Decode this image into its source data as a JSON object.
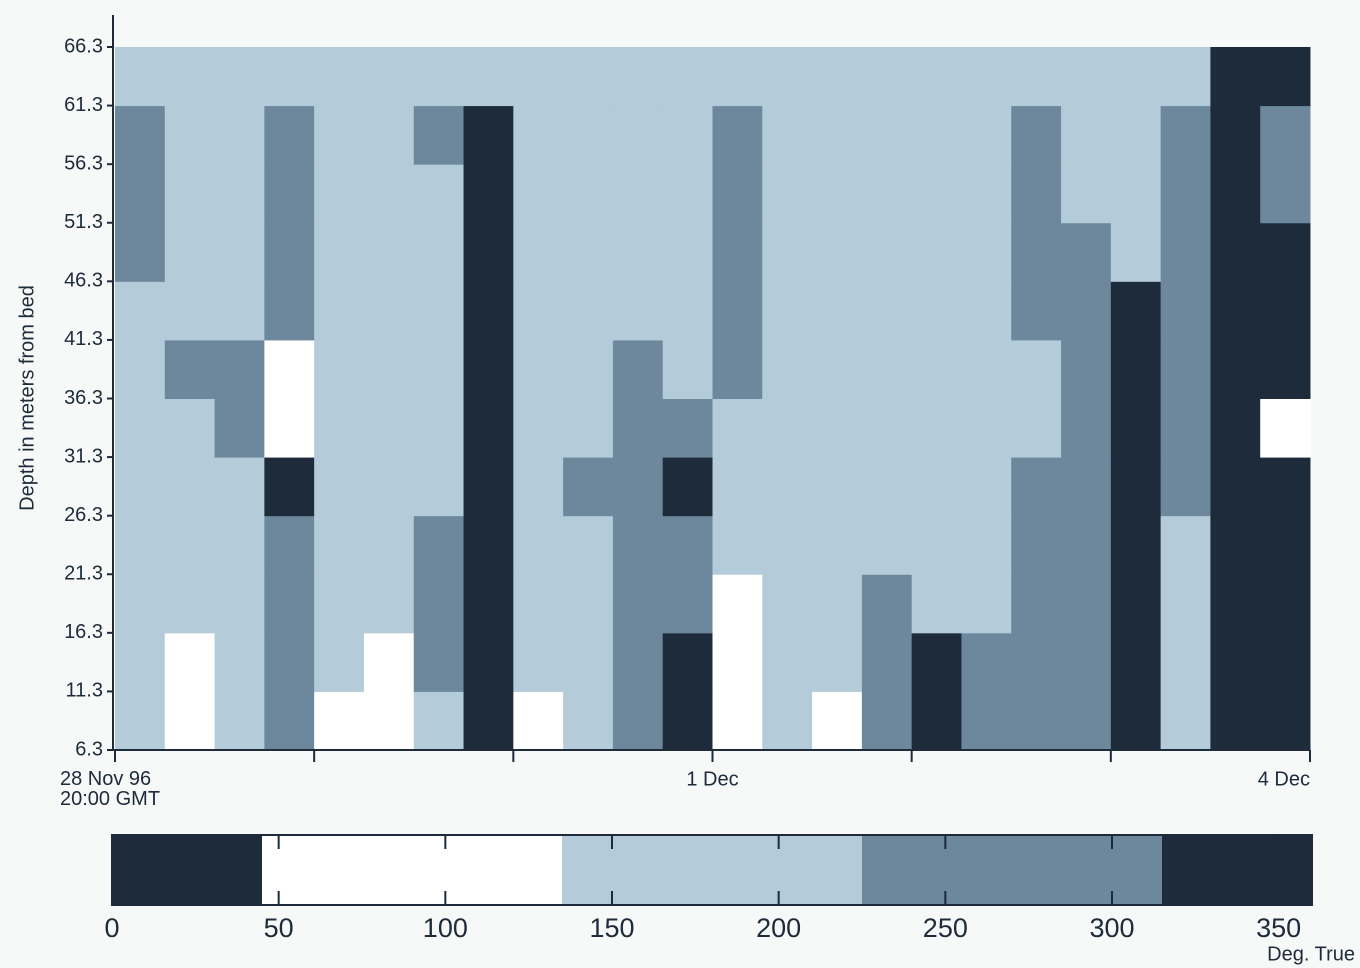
{
  "chart_data": {
    "type": "heatmap",
    "y_label": "Depth in meters from bed",
    "xlim": [
      0,
      6
    ],
    "xticks": [
      {
        "value": 0,
        "label": "28 Nov 96\n20:00 GMT"
      },
      {
        "value": 3,
        "label": "1 Dec"
      },
      {
        "value": 6,
        "label": "4 Dec"
      }
    ],
    "minor_xticks": [
      1,
      2,
      4,
      5
    ],
    "ylim": [
      6.3,
      66.3
    ],
    "yticks": [
      6.3,
      11.3,
      16.3,
      21.3,
      26.3,
      31.3,
      36.3,
      41.3,
      46.3,
      51.3,
      56.3,
      61.3,
      66.3
    ],
    "xbins": [
      0,
      0.25,
      0.5,
      0.75,
      1,
      1.25,
      1.5,
      1.75,
      2,
      2.25,
      2.5,
      2.75,
      3,
      3.25,
      3.5,
      3.75,
      4,
      4.25,
      4.5,
      4.75,
      5,
      5.25,
      5.5,
      5.75,
      6
    ],
    "ybins": [
      6.3,
      11.3,
      16.3,
      21.3,
      26.3,
      31.3,
      36.3,
      41.3,
      46.3,
      51.3,
      56.3,
      61.3,
      66.3
    ],
    "z": [
      [
        180,
        90,
        180,
        270,
        90,
        90,
        180,
        340,
        90,
        180,
        270,
        340,
        90,
        180,
        90,
        270,
        340,
        270,
        270,
        270,
        340,
        180,
        340,
        340
      ],
      [
        180,
        90,
        180,
        270,
        180,
        90,
        270,
        340,
        180,
        180,
        270,
        340,
        90,
        180,
        180,
        270,
        340,
        270,
        270,
        270,
        340,
        180,
        340,
        340
      ],
      [
        180,
        180,
        180,
        270,
        180,
        180,
        270,
        340,
        180,
        180,
        270,
        270,
        90,
        180,
        180,
        270,
        180,
        180,
        270,
        270,
        340,
        180,
        340,
        340
      ],
      [
        180,
        180,
        180,
        270,
        180,
        180,
        270,
        340,
        180,
        180,
        270,
        270,
        180,
        180,
        180,
        180,
        180,
        180,
        270,
        270,
        340,
        180,
        340,
        340
      ],
      [
        180,
        180,
        180,
        340,
        180,
        180,
        180,
        340,
        180,
        270,
        270,
        340,
        180,
        180,
        180,
        180,
        180,
        180,
        270,
        270,
        340,
        270,
        340,
        340
      ],
      [
        180,
        180,
        270,
        90,
        180,
        180,
        180,
        340,
        180,
        180,
        270,
        270,
        180,
        180,
        180,
        180,
        180,
        180,
        180,
        270,
        340,
        270,
        340,
        90
      ],
      [
        180,
        270,
        270,
        90,
        180,
        180,
        180,
        340,
        180,
        180,
        270,
        180,
        270,
        180,
        180,
        180,
        180,
        180,
        180,
        270,
        340,
        270,
        340,
        340
      ],
      [
        180,
        180,
        180,
        270,
        180,
        180,
        180,
        340,
        180,
        180,
        180,
        180,
        270,
        180,
        180,
        180,
        180,
        180,
        270,
        270,
        340,
        270,
        340,
        340
      ],
      [
        270,
        180,
        180,
        270,
        180,
        180,
        180,
        340,
        180,
        180,
        180,
        180,
        270,
        180,
        180,
        180,
        180,
        180,
        270,
        270,
        180,
        270,
        340,
        340
      ],
      [
        270,
        180,
        180,
        270,
        180,
        180,
        180,
        340,
        180,
        180,
        180,
        180,
        270,
        180,
        180,
        180,
        180,
        180,
        270,
        180,
        180,
        270,
        340,
        270
      ],
      [
        270,
        180,
        180,
        270,
        180,
        180,
        270,
        340,
        180,
        180,
        180,
        180,
        270,
        180,
        180,
        180,
        180,
        180,
        270,
        180,
        180,
        270,
        340,
        270
      ],
      [
        180,
        180,
        180,
        180,
        180,
        180,
        180,
        180,
        180,
        180,
        180,
        180,
        180,
        180,
        180,
        180,
        180,
        180,
        180,
        180,
        180,
        180,
        340,
        340
      ]
    ],
    "colorbar": {
      "label": "Deg. True",
      "lim": [
        0,
        360
      ],
      "ticks": [
        0,
        50,
        100,
        150,
        200,
        250,
        300,
        350
      ],
      "bins": [
        0,
        45,
        135,
        225,
        315,
        360
      ],
      "colors": [
        "#1d2b3b",
        "#ffffff",
        "#b4cbd9",
        "#6d889c",
        "#1d2b3b"
      ]
    }
  }
}
